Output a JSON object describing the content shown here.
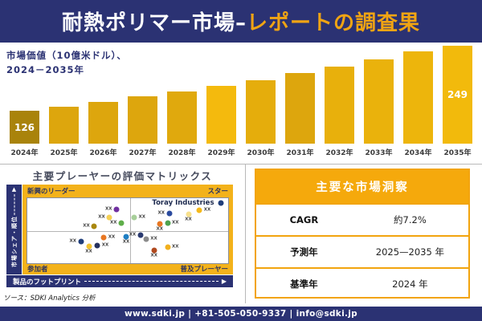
{
  "header": {
    "title_white": "耐熱ポリマー市場–",
    "title_gold": "レポートの調査果"
  },
  "chart_data": [
    {
      "type": "bar",
      "label_lines": [
        "市場価値（10億米ドル）、",
        "2024－2035年"
      ],
      "unit": "10億米ドル",
      "categories": [
        "2024年",
        "2025年",
        "2026年",
        "2027年",
        "2028年",
        "2029年",
        "2030年",
        "2031年",
        "2032年",
        "2033年",
        "2034年",
        "2035年"
      ],
      "values": [
        126,
        134,
        143,
        152,
        162,
        172,
        183,
        195,
        208,
        221,
        235,
        249
      ],
      "shown_value_labels": [
        {
          "index": 0,
          "text": "126"
        },
        {
          "index": 11,
          "text": "249"
        }
      ],
      "bar_colors": [
        "#a9830b",
        "#dda60d",
        "#dda60d",
        "#dda60d",
        "#e0a90d",
        "#f4ba0d",
        "#e5ad0c",
        "#dda60d",
        "#e8b00c",
        "#eab20c",
        "#edb50c",
        "#f2ba0c"
      ],
      "ylim": [
        0,
        260
      ],
      "grid": false,
      "legend": false
    },
    {
      "type": "scatter",
      "title": "主要プレーヤーの評価マトリックス",
      "quadrants": {
        "top_left": "新興のリーダー",
        "top_right": "スター",
        "bottom_left": "参加者",
        "bottom_right": "普及プレーヤー"
      },
      "x_axis": "製品のフットプリント",
      "y_axis": "市場シェア・順位",
      "company_label": "Toray Industries",
      "point_placeholder": "XX",
      "points": [
        {
          "x": 44.4,
          "y": 16.9,
          "color": "#7030a0",
          "xx": "left"
        },
        {
          "x": 40.9,
          "y": 30.1,
          "color": "#f5d054",
          "xx": "left"
        },
        {
          "x": 33.3,
          "y": 43.4,
          "color": "#a9870e",
          "xx": "left"
        },
        {
          "x": 46.8,
          "y": 38.6,
          "color": "#5fae4a",
          "xx": "left"
        },
        {
          "x": 26.6,
          "y": 66.3,
          "color": "#1f3d7a",
          "xx": "left"
        },
        {
          "x": 38.1,
          "y": 60.2,
          "color": "#e87722",
          "xx": "right"
        },
        {
          "x": 49.2,
          "y": 59.0,
          "color": "#1f7ec2",
          "xx": "below"
        },
        {
          "x": 30.6,
          "y": 73.5,
          "color": "#f2c230",
          "xx": "below"
        },
        {
          "x": 34.9,
          "y": 72.3,
          "color": "#26315e",
          "xx": "right"
        },
        {
          "x": 53.2,
          "y": 30.1,
          "color": "#a8cf9a",
          "xx": "right"
        },
        {
          "x": 70.6,
          "y": 22.9,
          "color": "#2a4a9e",
          "xx": "left"
        },
        {
          "x": 80.2,
          "y": 25.3,
          "color": "#f7e08c",
          "xx": "below"
        },
        {
          "x": 85.7,
          "y": 18.1,
          "color": "#f5b91a",
          "xx": "right"
        },
        {
          "x": 65.9,
          "y": 39.8,
          "color": "#e87722",
          "xx": "below"
        },
        {
          "x": 69.8,
          "y": 38.6,
          "color": "#4ea24e",
          "xx": "right"
        },
        {
          "x": 56.3,
          "y": 56.6,
          "color": "#2a3a70",
          "xx": "left"
        },
        {
          "x": 59.1,
          "y": 62.7,
          "color": "#8c8c8c",
          "xx": "right"
        },
        {
          "x": 63.1,
          "y": 80.7,
          "color": "#b0491f",
          "xx": "below"
        },
        {
          "x": 69.8,
          "y": 75.9,
          "color": "#f2b01e",
          "xx": "right"
        },
        {
          "x": 96.4,
          "y": 7.2,
          "color": "#1f3d7a",
          "xx": "none"
        }
      ]
    }
  ],
  "insights": {
    "title": "主要な市場洞察",
    "rows": [
      {
        "label": "CAGR",
        "value": "約7.2%"
      },
      {
        "label": "予測年",
        "value": "2025—2035 年"
      },
      {
        "label": "基準年",
        "value": "2024 年"
      }
    ]
  },
  "source_text": "ソース：SDKI Analytics 分析",
  "footer_text": "www.sdki.jp | +81-505-050-9337 | info@sdki.jp",
  "colors": {
    "navy": "#2b3273",
    "gold_title": "#f0a413",
    "gold_frame": "#f3b21b",
    "gold_table": "#f5a90c",
    "bar_default": "#e0a80d",
    "bar_first": "#a9830b",
    "divider": "#b9b9b9"
  }
}
